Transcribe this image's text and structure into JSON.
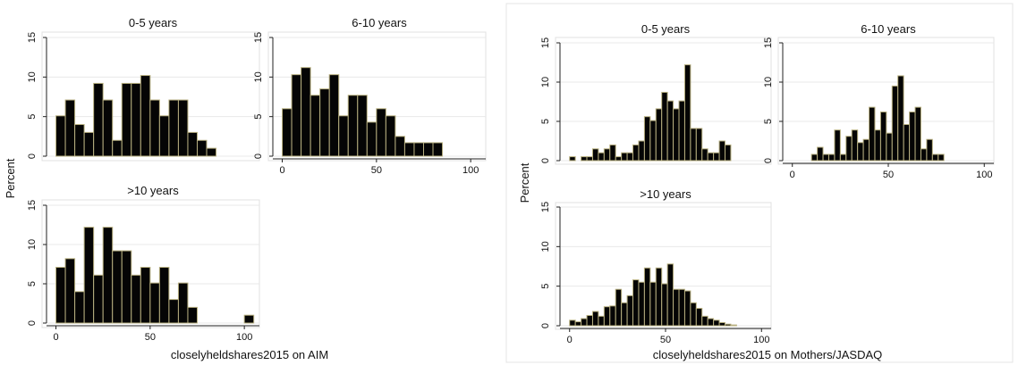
{
  "chart_data": [
    {
      "type": "bar",
      "xlabel": "closelyheldshares2015 on AIM",
      "ylabel": "Percent",
      "colors": {
        "bar_fill": "#050505",
        "bar_stroke": "#b8b080",
        "axis": "#222222",
        "grid": "#e8e8e8",
        "frame": "#e0e0e0"
      },
      "panels": [
        {
          "title": "0-5 years",
          "bin_start": 0,
          "bin_width": 5,
          "values": [
            5.1,
            7.1,
            4.0,
            3.0,
            9.2,
            7.1,
            2.0,
            9.2,
            9.2,
            10.2,
            7.1,
            5.1,
            7.1,
            7.1,
            3.0,
            2.0,
            1.0
          ],
          "xlim": [
            -5,
            108
          ],
          "ylim": [
            0,
            15
          ],
          "yticks": [
            "0",
            "5",
            "10",
            "15"
          ],
          "xticks": [
            "0",
            "50",
            "100"
          ],
          "show_x_axis": false
        },
        {
          "title": "6-10 years",
          "bin_start": 0,
          "bin_width": 5,
          "values": [
            6.0,
            10.3,
            11.2,
            7.7,
            8.5,
            10.3,
            5.1,
            7.7,
            7.7,
            4.3,
            6.0,
            5.1,
            2.5,
            1.7,
            1.7,
            1.7,
            1.7
          ],
          "xlim": [
            -5,
            108
          ],
          "ylim": [
            0,
            15
          ],
          "yticks": [
            "0",
            "5",
            "10",
            "15"
          ],
          "xticks": [
            "0",
            "50",
            "100"
          ],
          "show_x_axis": true
        },
        {
          "title": ">10 years",
          "bin_start": 0,
          "bin_width": 5,
          "values": [
            7.1,
            8.2,
            4.0,
            12.2,
            6.1,
            12.2,
            9.2,
            9.2,
            6.1,
            7.1,
            5.1,
            7.1,
            3.0,
            5.1,
            2.0,
            0,
            0,
            0,
            0,
            0,
            1.0
          ],
          "xlim": [
            -5,
            108
          ],
          "ylim": [
            0,
            15
          ],
          "yticks": [
            "0",
            "5",
            "10",
            "15"
          ],
          "xticks": [
            "0",
            "50",
            "100"
          ],
          "show_x_axis": true
        }
      ]
    },
    {
      "type": "bar",
      "xlabel": "closelyheldshares2015 on Mothers/JASDAQ",
      "ylabel": "Percent",
      "colors": {
        "bar_fill": "#050505",
        "bar_stroke": "#b8b080",
        "axis": "#222222",
        "grid": "#e8e8e8",
        "frame": "#e0e0e0"
      },
      "panels": [
        {
          "title": "0-5 years",
          "bin_start": 0,
          "bin_width": 3,
          "values": [
            0.5,
            0,
            0.5,
            0.5,
            1.5,
            1.0,
            1.5,
            2.0,
            0.5,
            1.0,
            1.0,
            2.0,
            2.5,
            5.6,
            5.1,
            6.6,
            8.7,
            7.6,
            6.6,
            7.6,
            12.2,
            4.1,
            4.1,
            1.5,
            1.0,
            1.0,
            2.5,
            2.0
          ],
          "xlim": [
            -5,
            105
          ],
          "ylim": [
            0,
            15
          ],
          "yticks": [
            "0",
            "5",
            "10",
            "15"
          ],
          "xticks": [
            "0",
            "50",
            "100"
          ],
          "show_x_axis": false
        },
        {
          "title": "6-10 years",
          "bin_start": 10,
          "bin_width": 3,
          "values": [
            0.8,
            1.7,
            0.8,
            0.8,
            3.9,
            0.8,
            3.1,
            3.9,
            2.3,
            2.7,
            6.8,
            3.9,
            6.2,
            3.5,
            9.5,
            10.8,
            4.6,
            6.2,
            6.8,
            1.5,
            2.7,
            0.8,
            0.8
          ],
          "xlim": [
            -5,
            105
          ],
          "ylim": [
            0,
            15
          ],
          "yticks": [
            "0",
            "5",
            "10",
            "15"
          ],
          "xticks": [
            "0",
            "50",
            "100"
          ],
          "show_x_axis": true
        },
        {
          "title": ">10 years",
          "bin_start": 0,
          "bin_width": 3,
          "values": [
            0.7,
            0.5,
            0.9,
            1.3,
            1.8,
            1.2,
            2.4,
            2.5,
            4.6,
            2.9,
            3.8,
            5.8,
            5.5,
            7.3,
            5.5,
            7.3,
            5.3,
            7.8,
            4.6,
            4.6,
            4.4,
            2.9,
            2.2,
            1.2,
            0.9,
            0.7,
            0.4,
            0.2,
            0.1
          ],
          "xlim": [
            -5,
            105
          ],
          "ylim": [
            0,
            15
          ],
          "yticks": [
            "0",
            "5",
            "10",
            "15"
          ],
          "xticks": [
            "0",
            "50",
            "100"
          ],
          "show_x_axis": true
        }
      ]
    }
  ]
}
